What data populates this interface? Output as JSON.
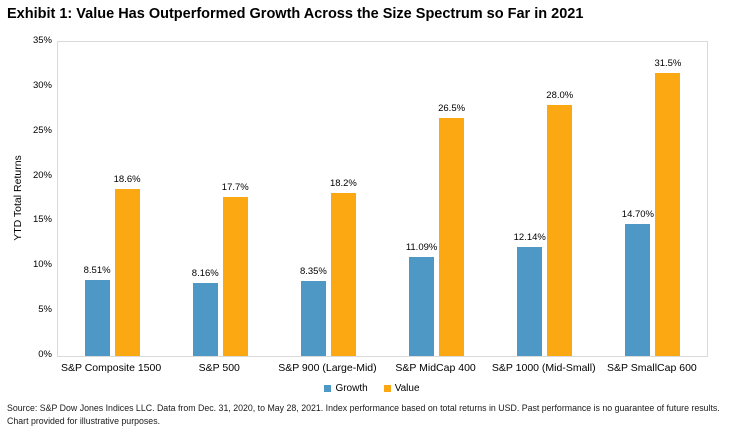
{
  "title": "Exhibit 1: Value Has Outperformed Growth Across the Size Spectrum so Far in 2021",
  "source_note": "Source: S&P Dow Jones Indices LLC. Data from Dec. 31, 2020, to May 28, 2021. Index performance based on total returns in USD. Past performance is no guarantee of future results. Chart provided for illustrative purposes.",
  "colors": {
    "growth_bar": "#4E98C5",
    "value_bar": "#FCA813",
    "plot_border": "#D9D9D9"
  },
  "chart_data": {
    "type": "bar",
    "title": "Exhibit 1: Value Has Outperformed Growth Across the Size Spectrum so Far in 2021",
    "categories": [
      "S&P Composite 1500",
      "S&P 500",
      "S&P 900 (Large-Mid)",
      "S&P MidCap 400",
      "S&P 1000 (Mid-Small)",
      "S&P SmallCap 600"
    ],
    "series": [
      {
        "name": "Growth",
        "color": "#4E98C5",
        "values": [
          8.51,
          8.16,
          8.35,
          11.09,
          12.14,
          14.7
        ],
        "labels": [
          "8.51%",
          "8.16%",
          "8.35%",
          "11.09%",
          "12.14%",
          "14.70%"
        ]
      },
      {
        "name": "Value",
        "color": "#FCA813",
        "values": [
          18.6,
          17.7,
          18.2,
          26.5,
          28.0,
          31.5
        ],
        "labels": [
          "18.6%",
          "17.7%",
          "18.2%",
          "26.5%",
          "28.0%",
          "31.5%"
        ]
      }
    ],
    "xlabel": "",
    "ylabel": "YTD Total Returns",
    "ylim": [
      0,
      35
    ],
    "ytick_step": 5,
    "ytick_labels": [
      "0%",
      "5%",
      "10%",
      "15%",
      "20%",
      "25%",
      "30%",
      "35%"
    ],
    "grid": false,
    "legend_position": "bottom"
  }
}
